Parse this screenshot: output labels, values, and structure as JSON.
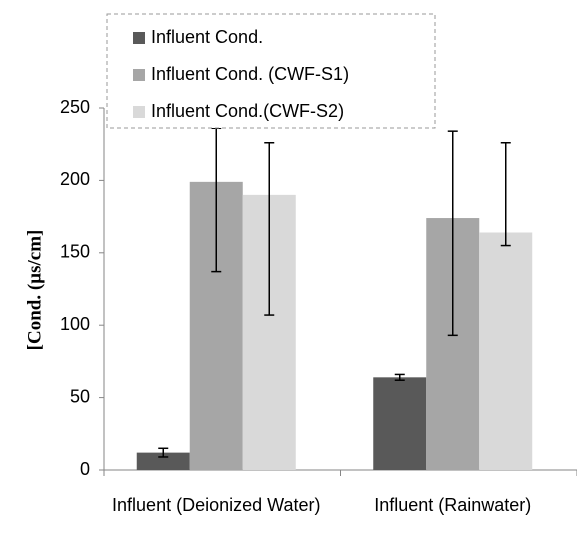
{
  "chart_data": {
    "type": "bar",
    "y_label": "[Cond. (µs/cm]",
    "categories": [
      "Influent (Deionized Water)",
      "Influent (Rainwater)"
    ],
    "series": [
      {
        "name": "Influent Cond.",
        "color": "#595959",
        "values": [
          12,
          64
        ],
        "errors": [
          [
            3,
            3
          ],
          [
            2,
            2
          ]
        ]
      },
      {
        "name": "Influent Cond. (CWF-S1)",
        "color": "#a6a6a6",
        "values": [
          199,
          174
        ],
        "errors": [
          [
            62,
            37
          ],
          [
            81,
            60
          ]
        ]
      },
      {
        "name": "Influent Cond.(CWF-S2)",
        "color": "#d9d9d9",
        "values": [
          190,
          164
        ],
        "errors": [
          [
            83,
            36
          ],
          [
            9,
            62
          ]
        ]
      }
    ],
    "ylim": [
      0,
      250
    ],
    "yticks": [
      0,
      50,
      100,
      150,
      200,
      250
    ],
    "legend": "top"
  }
}
